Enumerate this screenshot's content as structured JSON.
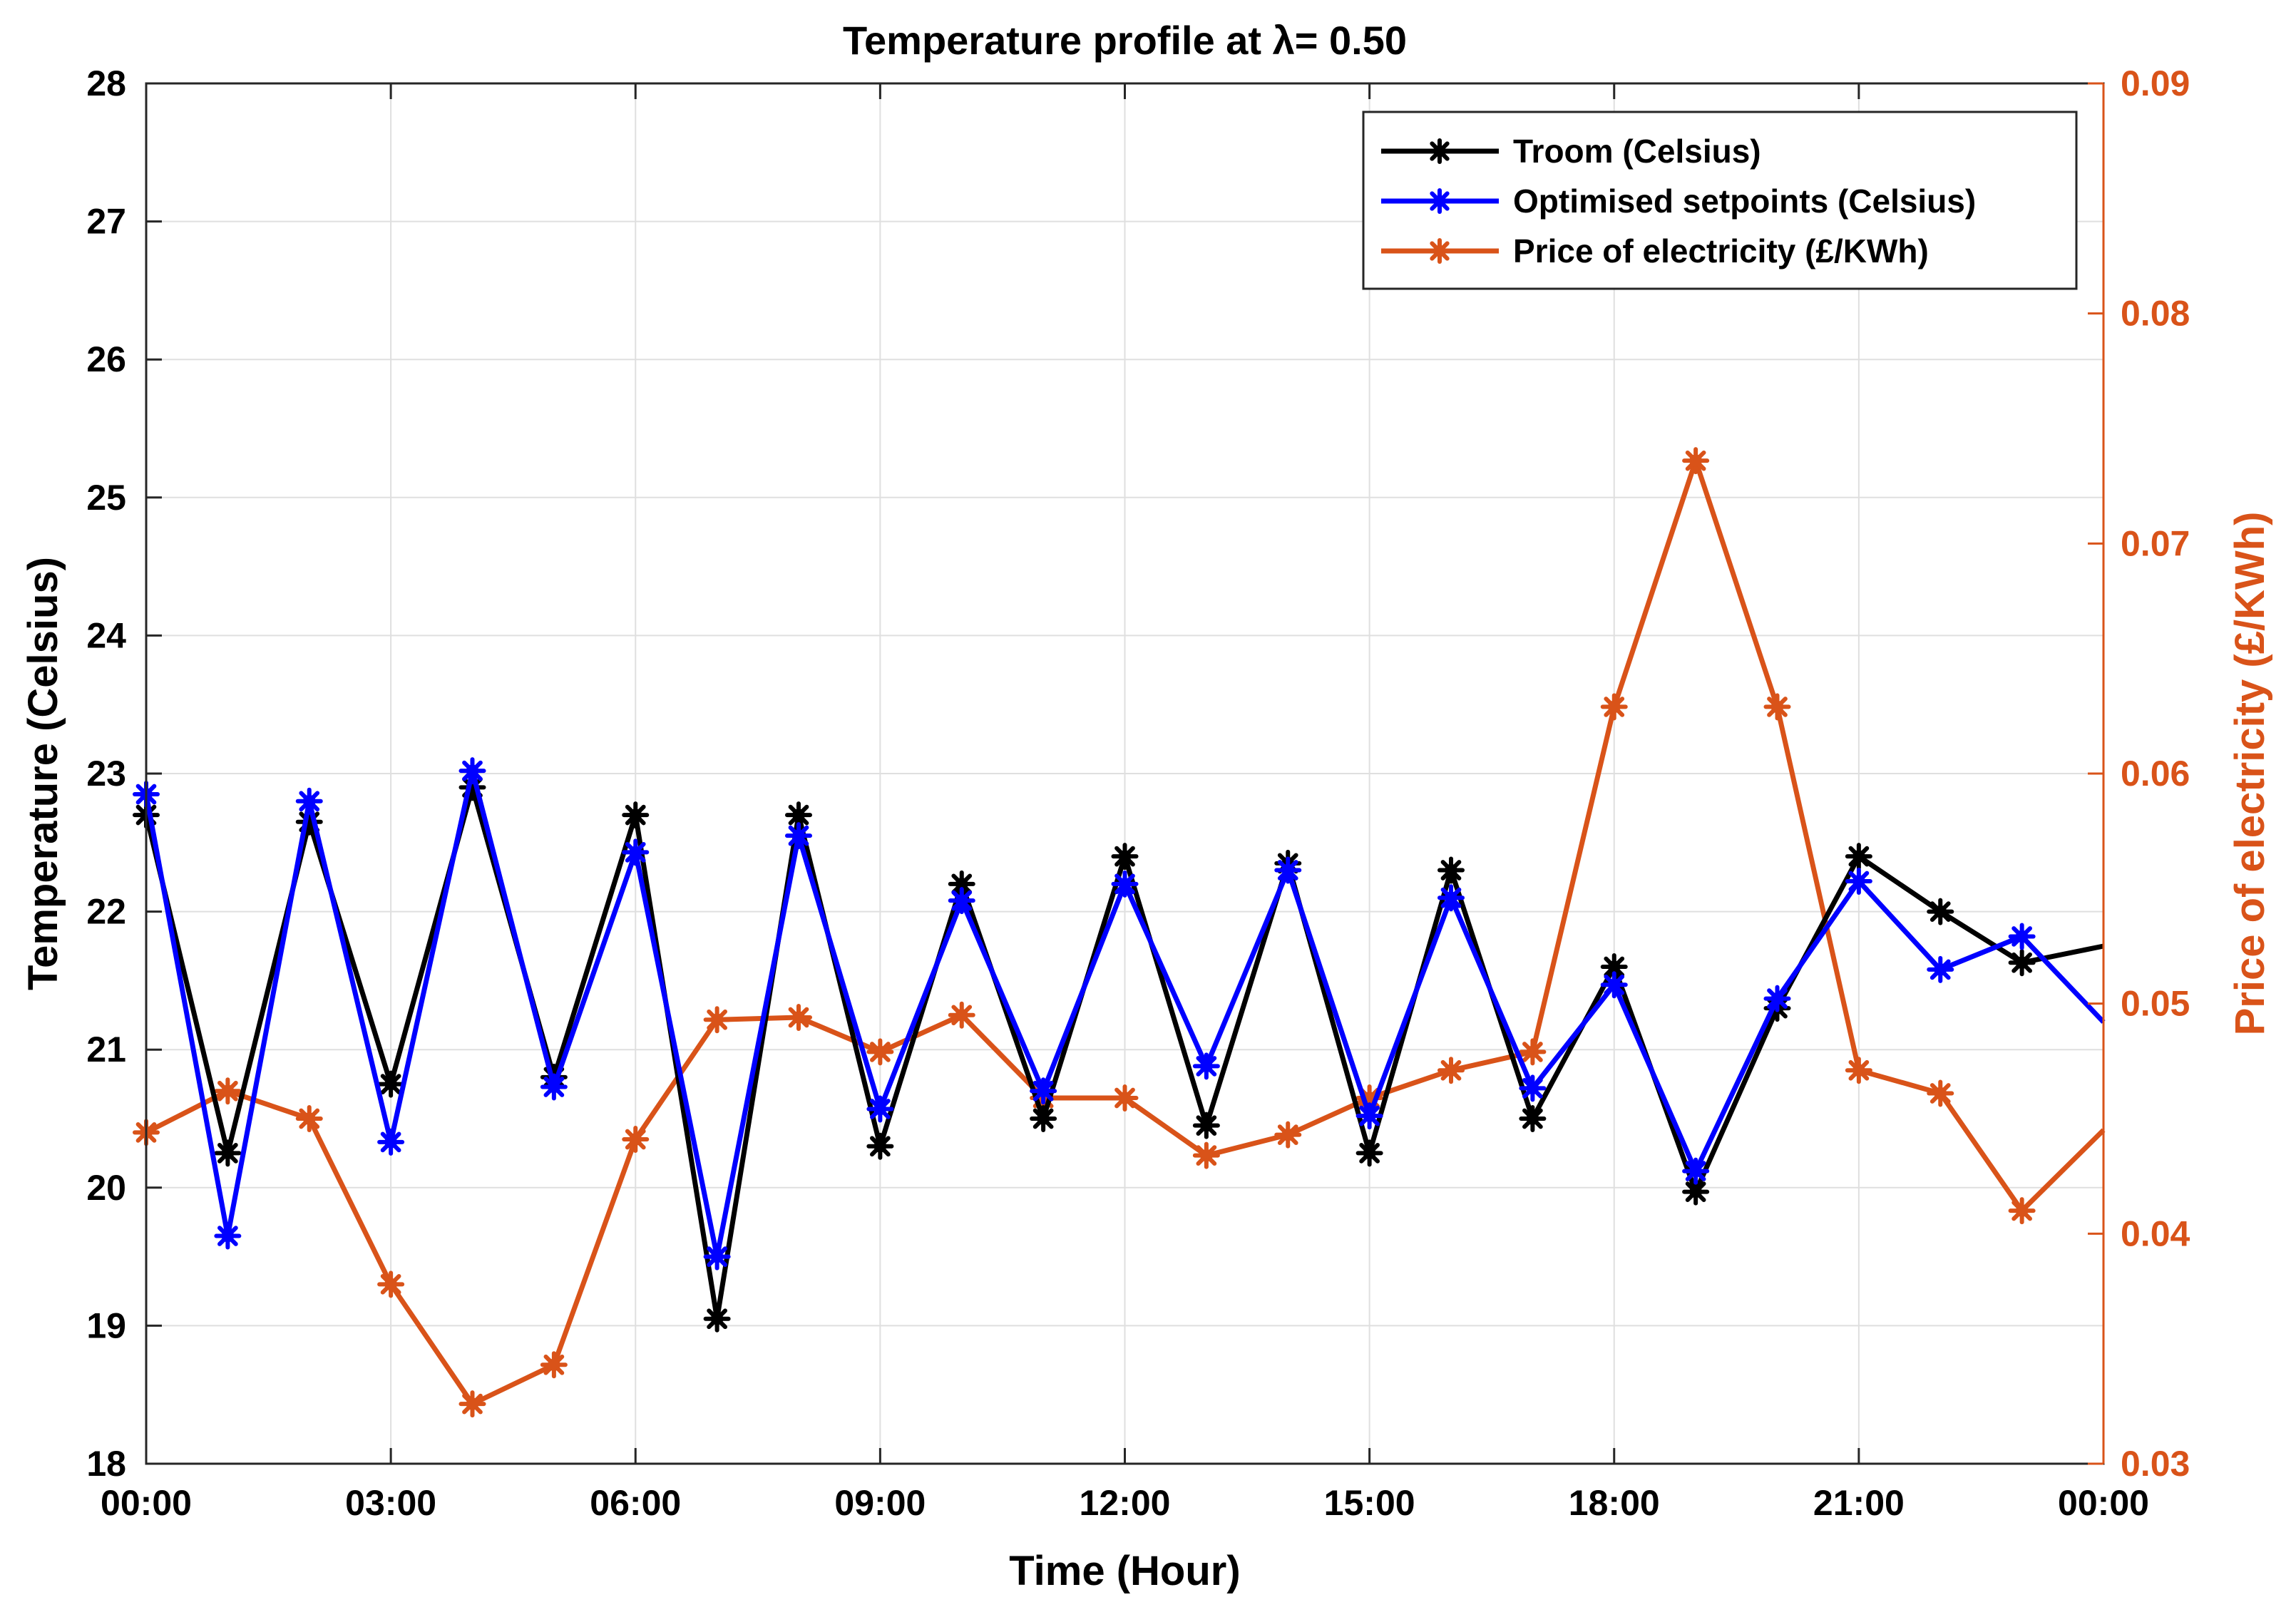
{
  "chart_data": {
    "type": "line",
    "title": "Temperature profile at  λ= 0.50",
    "xlabel": "Time (Hour)",
    "ylabel_left": "Temperature (Celsius)",
    "ylabel_right": "Price of electricity (£/KWh)",
    "x_ticks": [
      "00:00",
      "03:00",
      "06:00",
      "09:00",
      "12:00",
      "15:00",
      "18:00",
      "21:00",
      "00:00"
    ],
    "xlim": [
      0,
      24
    ],
    "ylim_left": [
      18,
      28
    ],
    "ylim_right": [
      0.03,
      0.09
    ],
    "y_ticks_left": [
      "18",
      "19",
      "20",
      "21",
      "22",
      "23",
      "24",
      "25",
      "26",
      "27",
      "28"
    ],
    "y_ticks_right": [
      "0.03",
      "0.04",
      "0.05",
      "0.06",
      "0.07",
      "0.08",
      "0.09"
    ],
    "grid": true,
    "legend_position": "top-right",
    "colors": {
      "troom": "#000000",
      "setpoints": "#0000ff",
      "price": "#d95319"
    },
    "x": [
      0,
      1,
      2,
      3,
      4,
      5,
      6,
      7,
      8,
      9,
      10,
      11,
      12,
      13,
      14,
      15,
      16,
      17,
      18,
      19,
      20,
      21,
      22,
      23,
      24
    ],
    "series": [
      {
        "name": "Troom (Celsius)",
        "axis": "left",
        "color": "#000000",
        "values": [
          22.7,
          20.25,
          22.65,
          20.75,
          22.9,
          20.8,
          22.7,
          19.05,
          22.7,
          20.3,
          22.2,
          20.5,
          22.4,
          20.45,
          22.35,
          20.25,
          22.3,
          20.5,
          21.6,
          19.97,
          21.3,
          22.4,
          22.0,
          21.63,
          21.75
        ]
      },
      {
        "name": "Optimised setpoints (Celsius)",
        "axis": "left",
        "color": "#0000ff",
        "values": [
          22.85,
          19.65,
          22.8,
          20.33,
          23.02,
          20.73,
          22.43,
          19.5,
          22.55,
          20.57,
          22.08,
          20.7,
          22.2,
          20.88,
          22.3,
          20.52,
          22.1,
          20.72,
          21.47,
          20.12,
          21.37,
          22.22,
          21.58,
          21.82,
          21.2
        ]
      },
      {
        "name": "Price of electricity (£/KWh)",
        "axis": "right",
        "color": "#d95319",
        "values": [
          0.0444,
          0.0462,
          0.045,
          0.0378,
          0.0326,
          0.0343,
          0.0441,
          0.0493,
          0.0494,
          0.0479,
          0.0495,
          0.0459,
          0.0459,
          0.0434,
          0.0443,
          0.0459,
          0.0471,
          0.0479,
          0.0629,
          0.0736,
          0.0629,
          0.0471,
          0.0461,
          0.041,
          0.0445
        ]
      }
    ]
  }
}
